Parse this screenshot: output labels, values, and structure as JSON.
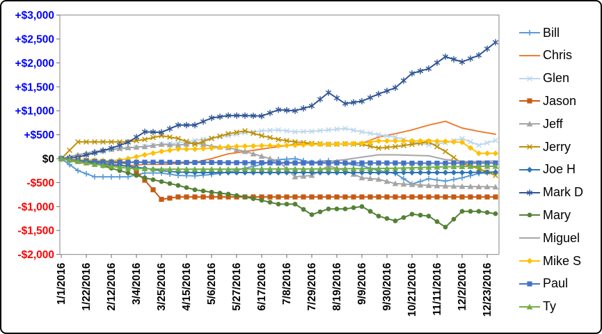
{
  "chart_data": {
    "type": "line",
    "title": "",
    "xlabel": "",
    "ylabel": "",
    "ylim": [
      -2000,
      3000
    ],
    "y_tick_step": 500,
    "grid": false,
    "legend_position": "right",
    "y_tick_labels": [
      {
        "text": "+$3,000",
        "color": "#0000FF",
        "value": 3000
      },
      {
        "text": "+$2,500",
        "color": "#0000FF",
        "value": 2500
      },
      {
        "text": "+$2,000",
        "color": "#0000FF",
        "value": 2000
      },
      {
        "text": "+$1,500",
        "color": "#0000FF",
        "value": 1500
      },
      {
        "text": "+$1,000",
        "color": "#0000FF",
        "value": 1000
      },
      {
        "text": "+$500",
        "color": "#0000FF",
        "value": 500
      },
      {
        "text": "$0",
        "color": "#000000",
        "value": 0
      },
      {
        "text": "-$500",
        "color": "#FF0000",
        "value": -500
      },
      {
        "text": "-$1,000",
        "color": "#FF0000",
        "value": -1000
      },
      {
        "text": "-$1,500",
        "color": "#FF0000",
        "value": -1500
      },
      {
        "text": "-$2,000",
        "color": "#FF0000",
        "value": -2000
      }
    ],
    "x_tick_labels": [
      "1/1/2016",
      "1/22/2016",
      "2/12/2016",
      "3/4/2016",
      "3/25/2016",
      "4/15/2016",
      "5/6/2016",
      "5/27/2016",
      "6/17/2016",
      "7/8/2016",
      "7/29/2016",
      "8/19/2016",
      "9/9/2016",
      "9/30/2016",
      "10/21/2016",
      "11/11/2016",
      "12/2/2016",
      "12/23/2016"
    ],
    "x_weeks": [
      0,
      2,
      4,
      6,
      8,
      10,
      12,
      14,
      16,
      18,
      20,
      22,
      24,
      26,
      28,
      30,
      32,
      34,
      36,
      38,
      40,
      42,
      44,
      46,
      48,
      50,
      52
    ],
    "series": [
      {
        "name": "Bill",
        "color": "#5B9BD5",
        "marker": "plus",
        "values": [
          0,
          -250,
          -380,
          -380,
          -380,
          -300,
          -300,
          -350,
          -360,
          -330,
          -280,
          -200,
          -120,
          -20,
          0,
          -80,
          -40,
          -100,
          -150,
          -250,
          -310,
          -530,
          -420,
          -470,
          -400,
          -310,
          -280
        ]
      },
      {
        "name": "Chris",
        "color": "#ED7D31",
        "marker": "none",
        "values": [
          0,
          -80,
          -120,
          -140,
          -150,
          -120,
          -120,
          -100,
          -80,
          0,
          100,
          150,
          200,
          250,
          300,
          310,
          300,
          310,
          320,
          450,
          520,
          600,
          700,
          780,
          640,
          570,
          510
        ]
      },
      {
        "name": "Glen",
        "color": "#BDD7EE",
        "marker": "x",
        "values": [
          0,
          60,
          120,
          180,
          220,
          260,
          300,
          330,
          380,
          430,
          480,
          540,
          580,
          600,
          560,
          570,
          600,
          630,
          560,
          500,
          450,
          350,
          290,
          330,
          420,
          280,
          380
        ]
      },
      {
        "name": "Jason",
        "color": "#C55A11",
        "marker": "square",
        "values": [
          0,
          -20,
          -50,
          -80,
          -100,
          -450,
          -850,
          -800,
          -800,
          -800,
          -800,
          -800,
          -800,
          -800,
          -800,
          -800,
          -800,
          -800,
          -800,
          -800,
          -800,
          -800,
          -800,
          -800,
          -800,
          -800,
          -800
        ]
      },
      {
        "name": "Jeff",
        "color": "#A5A5A5",
        "marker": "triangle",
        "values": [
          0,
          80,
          150,
          200,
          230,
          250,
          300,
          280,
          330,
          260,
          230,
          150,
          50,
          -50,
          -380,
          -350,
          -150,
          -250,
          -400,
          -430,
          -520,
          -540,
          -560,
          -570,
          -580,
          -585,
          -590
        ]
      },
      {
        "name": "Jerry",
        "color": "#BF9000",
        "marker": "x",
        "values": [
          0,
          350,
          350,
          350,
          350,
          400,
          480,
          420,
          300,
          420,
          520,
          580,
          480,
          400,
          350,
          320,
          300,
          310,
          300,
          220,
          250,
          300,
          350,
          150,
          -100,
          -210,
          -350
        ]
      },
      {
        "name": "Joe H",
        "color": "#2E75B6",
        "marker": "diamond",
        "values": [
          0,
          -30,
          -80,
          -120,
          -160,
          -200,
          -250,
          -280,
          -290,
          -290,
          -290,
          -290,
          -290,
          -290,
          -290,
          -290,
          -290,
          -290,
          -290,
          -290,
          -290,
          -290,
          -290,
          -290,
          -290,
          -285,
          -280
        ]
      },
      {
        "name": "Mark D",
        "color": "#2F5597",
        "marker": "star",
        "values": [
          0,
          30,
          120,
          220,
          340,
          560,
          550,
          700,
          700,
          850,
          900,
          900,
          890,
          1020,
          1000,
          1100,
          1380,
          1150,
          1200,
          1350,
          1480,
          1780,
          1880,
          2130,
          2020,
          2160,
          2430
        ]
      },
      {
        "name": "Mary",
        "color": "#538135",
        "marker": "circle",
        "values": [
          0,
          -30,
          -100,
          -200,
          -300,
          -400,
          -480,
          -560,
          -650,
          -700,
          -740,
          -800,
          -870,
          -950,
          -950,
          -1170,
          -1050,
          -1050,
          -1000,
          -1200,
          -1300,
          -1160,
          -1200,
          -1430,
          -1100,
          -1100,
          -1150
        ]
      },
      {
        "name": "Miguel",
        "color": "#A6A6A6",
        "marker": "none",
        "values": [
          0,
          -30,
          -60,
          -70,
          -70,
          -70,
          -75,
          -75,
          -75,
          -75,
          -80,
          -80,
          -80,
          -80,
          -80,
          -80,
          -60,
          -20,
          30,
          80,
          80,
          70,
          60,
          -20,
          -60,
          -60,
          -50
        ]
      },
      {
        "name": "Mike S",
        "color": "#FFC000",
        "marker": "diamond",
        "values": [
          0,
          -20,
          -30,
          -50,
          0,
          80,
          150,
          200,
          200,
          220,
          250,
          260,
          270,
          270,
          280,
          300,
          300,
          310,
          320,
          370,
          370,
          370,
          370,
          360,
          340,
          110,
          110
        ]
      },
      {
        "name": "Paul",
        "color": "#4472C4",
        "marker": "square",
        "values": [
          0,
          -40,
          -60,
          -70,
          -75,
          -75,
          -75,
          -80,
          -80,
          -80,
          -85,
          -85,
          -85,
          -90,
          -90,
          -90,
          -90,
          -90,
          -90,
          -90,
          -90,
          -95,
          -95,
          -95,
          -90,
          -90,
          -90
        ]
      },
      {
        "name": "Ty",
        "color": "#70AD47",
        "marker": "triangle",
        "values": [
          0,
          -60,
          -120,
          -160,
          -200,
          -210,
          -220,
          -220,
          -220,
          -220,
          -220,
          -215,
          -215,
          -215,
          -215,
          -215,
          -215,
          -210,
          -210,
          -205,
          -200,
          -190,
          -180,
          -170,
          -165,
          -160,
          -160
        ]
      }
    ]
  },
  "style": {
    "axis_line_color": "#9a9a9a",
    "tick_color": "#7f7f7f",
    "background": "#ffffff"
  }
}
